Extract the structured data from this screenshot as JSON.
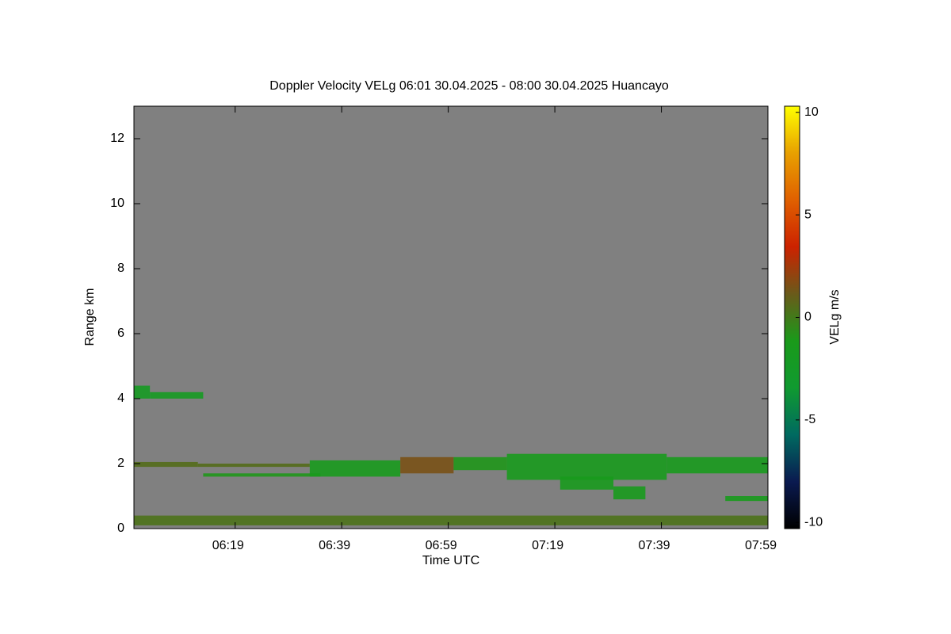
{
  "chart_data": {
    "type": "heatmap",
    "title": "Doppler Velocity VELg   06:01 30.04.2025 - 08:00 30.04.2025 Huancayo",
    "x_label": "Time UTC",
    "y_label": "Range km",
    "colorbar_label": "VELg m/s",
    "xlim": [
      "06:00",
      "07:59"
    ],
    "xticks": [
      "06:19",
      "06:39",
      "06:59",
      "07:19",
      "07:39",
      "07:59"
    ],
    "ylim": [
      0,
      13
    ],
    "yticks": [
      0,
      2,
      4,
      6,
      8,
      10,
      12
    ],
    "clim": [
      -10.3,
      10.3
    ],
    "cticks": [
      -10,
      -5,
      0,
      5,
      10
    ],
    "background": "#808080",
    "colormap": [
      "#000000",
      "#0a1a50",
      "#006a60",
      "#109a30",
      "#1a9a1a",
      "#6a5a1a",
      "#cc2200",
      "#e06000",
      "#e8a000",
      "#ffff00"
    ],
    "cells": [
      {
        "x": [
          "06:00",
          "06:03"
        ],
        "y": [
          4.0,
          4.4
        ],
        "value": -2
      },
      {
        "x": [
          "06:03",
          "06:13"
        ],
        "y": [
          4.0,
          4.2
        ],
        "value": -2
      },
      {
        "x": [
          "06:00",
          "06:12"
        ],
        "y": [
          1.9,
          2.05
        ],
        "value": 0.5
      },
      {
        "x": [
          "06:12",
          "06:33"
        ],
        "y": [
          1.9,
          2.0
        ],
        "value": 0.5
      },
      {
        "x": [
          "06:13",
          "06:35"
        ],
        "y": [
          1.6,
          1.7
        ],
        "value": -1
      },
      {
        "x": [
          "06:33",
          "06:50"
        ],
        "y": [
          1.6,
          2.1
        ],
        "value": -1.5
      },
      {
        "x": [
          "06:50",
          "07:00"
        ],
        "y": [
          1.7,
          2.2
        ],
        "value": 1.5
      },
      {
        "x": [
          "07:00",
          "07:10"
        ],
        "y": [
          1.8,
          2.2
        ],
        "value": -1
      },
      {
        "x": [
          "07:10",
          "07:40"
        ],
        "y": [
          1.5,
          2.3
        ],
        "value": -1.5
      },
      {
        "x": [
          "07:40",
          "07:59"
        ],
        "y": [
          1.7,
          2.2
        ],
        "value": -1.5
      },
      {
        "x": [
          "07:20",
          "07:30"
        ],
        "y": [
          1.2,
          1.6
        ],
        "value": -1.5
      },
      {
        "x": [
          "07:30",
          "07:36"
        ],
        "y": [
          0.9,
          1.3
        ],
        "value": -1.5
      },
      {
        "x": [
          "07:51",
          "07:59"
        ],
        "y": [
          0.85,
          1.0
        ],
        "value": -1.5
      },
      {
        "x": [
          "06:00",
          "07:59"
        ],
        "y": [
          0.1,
          0.4
        ],
        "value": 0.3
      }
    ]
  }
}
